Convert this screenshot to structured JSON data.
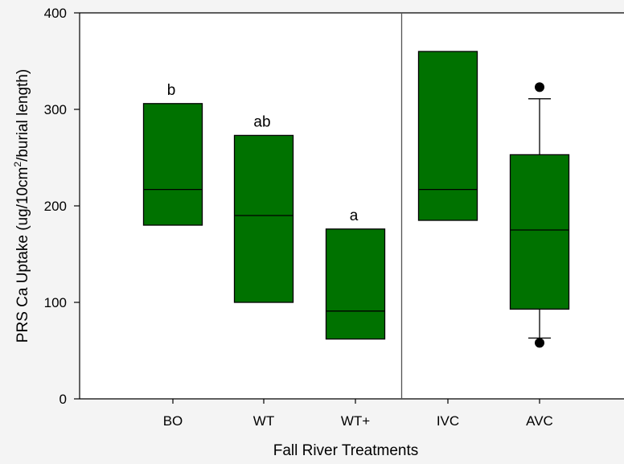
{
  "colors": {
    "box_fill": "#007200",
    "stroke": "#000000",
    "background": "#f4f4f4",
    "plot_background": "#ffffff",
    "divider": "#555555"
  },
  "chart_data": {
    "type": "box",
    "xlabel": "Fall River Treatments",
    "ylabel": "PRS Ca Uptake (ug/10cm²/burial length)",
    "ylabel_parts": {
      "before": "PRS Ca Uptake (ug/10cm",
      "sup": "2",
      "after": "/burial length)"
    },
    "ylim": [
      0,
      400
    ],
    "yticks": [
      0,
      100,
      200,
      300,
      400
    ],
    "grid": false,
    "legend": "none",
    "categories": [
      "BO",
      "WT",
      "WT+",
      "IVC",
      "AVC"
    ],
    "boxes": [
      {
        "label": "BO",
        "q1": 180,
        "median": 217,
        "q3": 306,
        "letter": "b"
      },
      {
        "label": "WT",
        "q1": 100,
        "median": 190,
        "q3": 273,
        "letter": "ab"
      },
      {
        "label": "WT+",
        "q1": 62,
        "median": 91,
        "q3": 176,
        "letter": "a"
      },
      {
        "label": "IVC",
        "q1": 185,
        "median": 217,
        "q3": 360,
        "letter": ""
      },
      {
        "label": "AVC",
        "q1": 93,
        "median": 175,
        "q3": 253,
        "whisker_low": 63,
        "whisker_high": 311,
        "outliers": [
          58,
          323
        ],
        "letter": ""
      }
    ],
    "group_divider_after_category": "WT+"
  }
}
